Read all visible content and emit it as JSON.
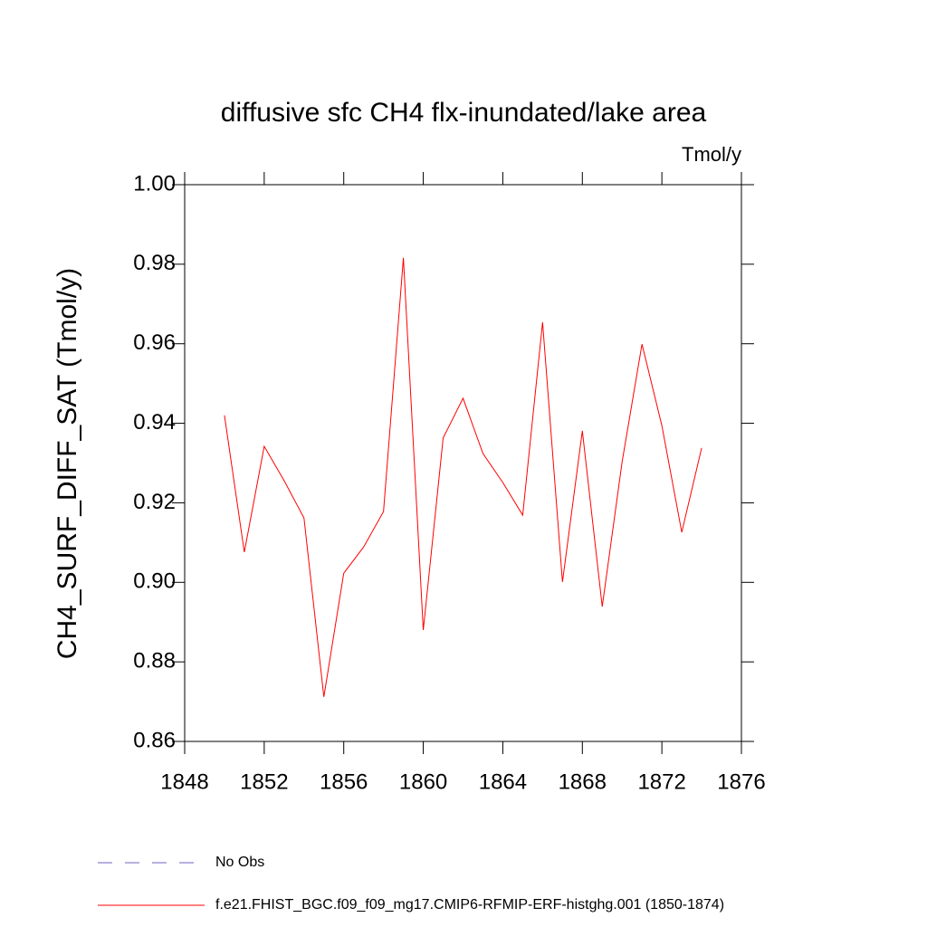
{
  "chart_data": {
    "type": "line",
    "title": "diffusive sfc CH4 flx-inundated/lake area",
    "units": "Tmol/y",
    "y_label": "CH4_SURF_DIFF_SAT  (Tmol/y)",
    "x": [
      1850,
      1851,
      1852,
      1853,
      1854,
      1855,
      1856,
      1857,
      1858,
      1859,
      1860,
      1861,
      1862,
      1863,
      1864,
      1865,
      1866,
      1867,
      1868,
      1869,
      1870,
      1871,
      1872,
      1873,
      1874
    ],
    "series": [
      {
        "name": "No Obs",
        "color": "#7060c0",
        "dash": "dashed",
        "values": [
          null,
          null,
          null,
          null,
          null,
          null,
          null,
          null,
          null,
          null,
          null,
          null,
          null,
          null,
          null,
          null,
          null,
          null,
          null,
          null,
          null,
          null,
          null,
          null,
          null
        ]
      },
      {
        "name": "f.e21.FHIST_BGC.f09_f09_mg17.CMIP6-RFMIP-ERF-histghg.001 (1850-1874)",
        "color": "#ff0000",
        "dash": "solid",
        "values": [
          0.942,
          0.9076,
          0.9342,
          0.9256,
          0.9162,
          0.8712,
          0.9023,
          0.9089,
          0.9178,
          0.9816,
          0.888,
          0.9363,
          0.9463,
          0.9324,
          0.9251,
          0.9169,
          0.9654,
          0.9001,
          0.9381,
          0.8939,
          0.9303,
          0.9599,
          0.9394,
          0.9126,
          0.9338
        ]
      }
    ],
    "xlim": [
      1848,
      1876
    ],
    "xticks": [
      1848,
      1852,
      1856,
      1860,
      1864,
      1868,
      1872,
      1876
    ],
    "ylim": [
      0.86,
      1.0
    ],
    "yticks": [
      {
        "value": 0.86,
        "label": "0.86"
      },
      {
        "value": 0.88,
        "label": "0.88"
      },
      {
        "value": 0.9,
        "label": "0.90"
      },
      {
        "value": 0.92,
        "label": "0.92"
      },
      {
        "value": 0.94,
        "label": "0.94"
      },
      {
        "value": 0.96,
        "label": "0.96"
      },
      {
        "value": 0.98,
        "label": "0.98"
      },
      {
        "value": 1.0,
        "label": "1.00"
      }
    ],
    "grid": false
  }
}
